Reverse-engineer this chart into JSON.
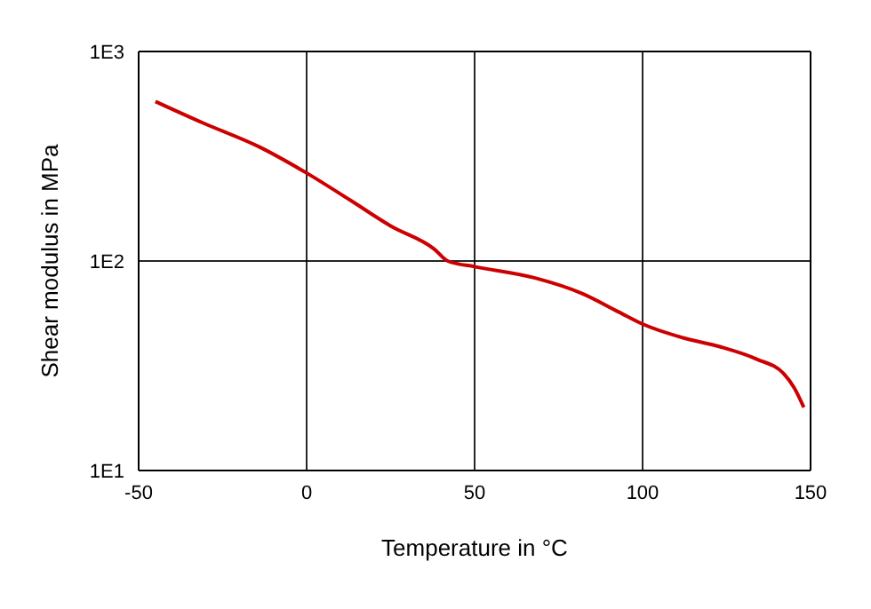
{
  "chart_data": {
    "type": "line",
    "xlabel": "Temperature in °C",
    "ylabel": "Shear modulus in MPa",
    "x": [
      -45,
      -31,
      -14,
      0,
      13,
      25,
      38,
      42,
      50,
      68,
      82,
      93,
      100,
      112,
      123,
      134,
      142,
      145,
      148
    ],
    "series": [
      {
        "color": "#cc0000",
        "values": [
          577,
          457,
          350,
          263,
          195,
          147,
          114,
          100,
          94,
          83,
          70,
          57,
          50,
          43,
          39,
          34,
          29,
          25,
          20
        ]
      }
    ],
    "xlim": [
      -50,
      150
    ],
    "xticks": [
      -50,
      0,
      50,
      100,
      150
    ],
    "ylim": [
      10,
      1000
    ],
    "yticks": [
      {
        "value": 10,
        "label": "1E1"
      },
      {
        "value": 100,
        "label": "1E2"
      },
      {
        "value": 1000,
        "label": "1E3"
      }
    ],
    "log": "y",
    "grid": true,
    "legend": false,
    "marker": "none",
    "line_style": "solid"
  }
}
